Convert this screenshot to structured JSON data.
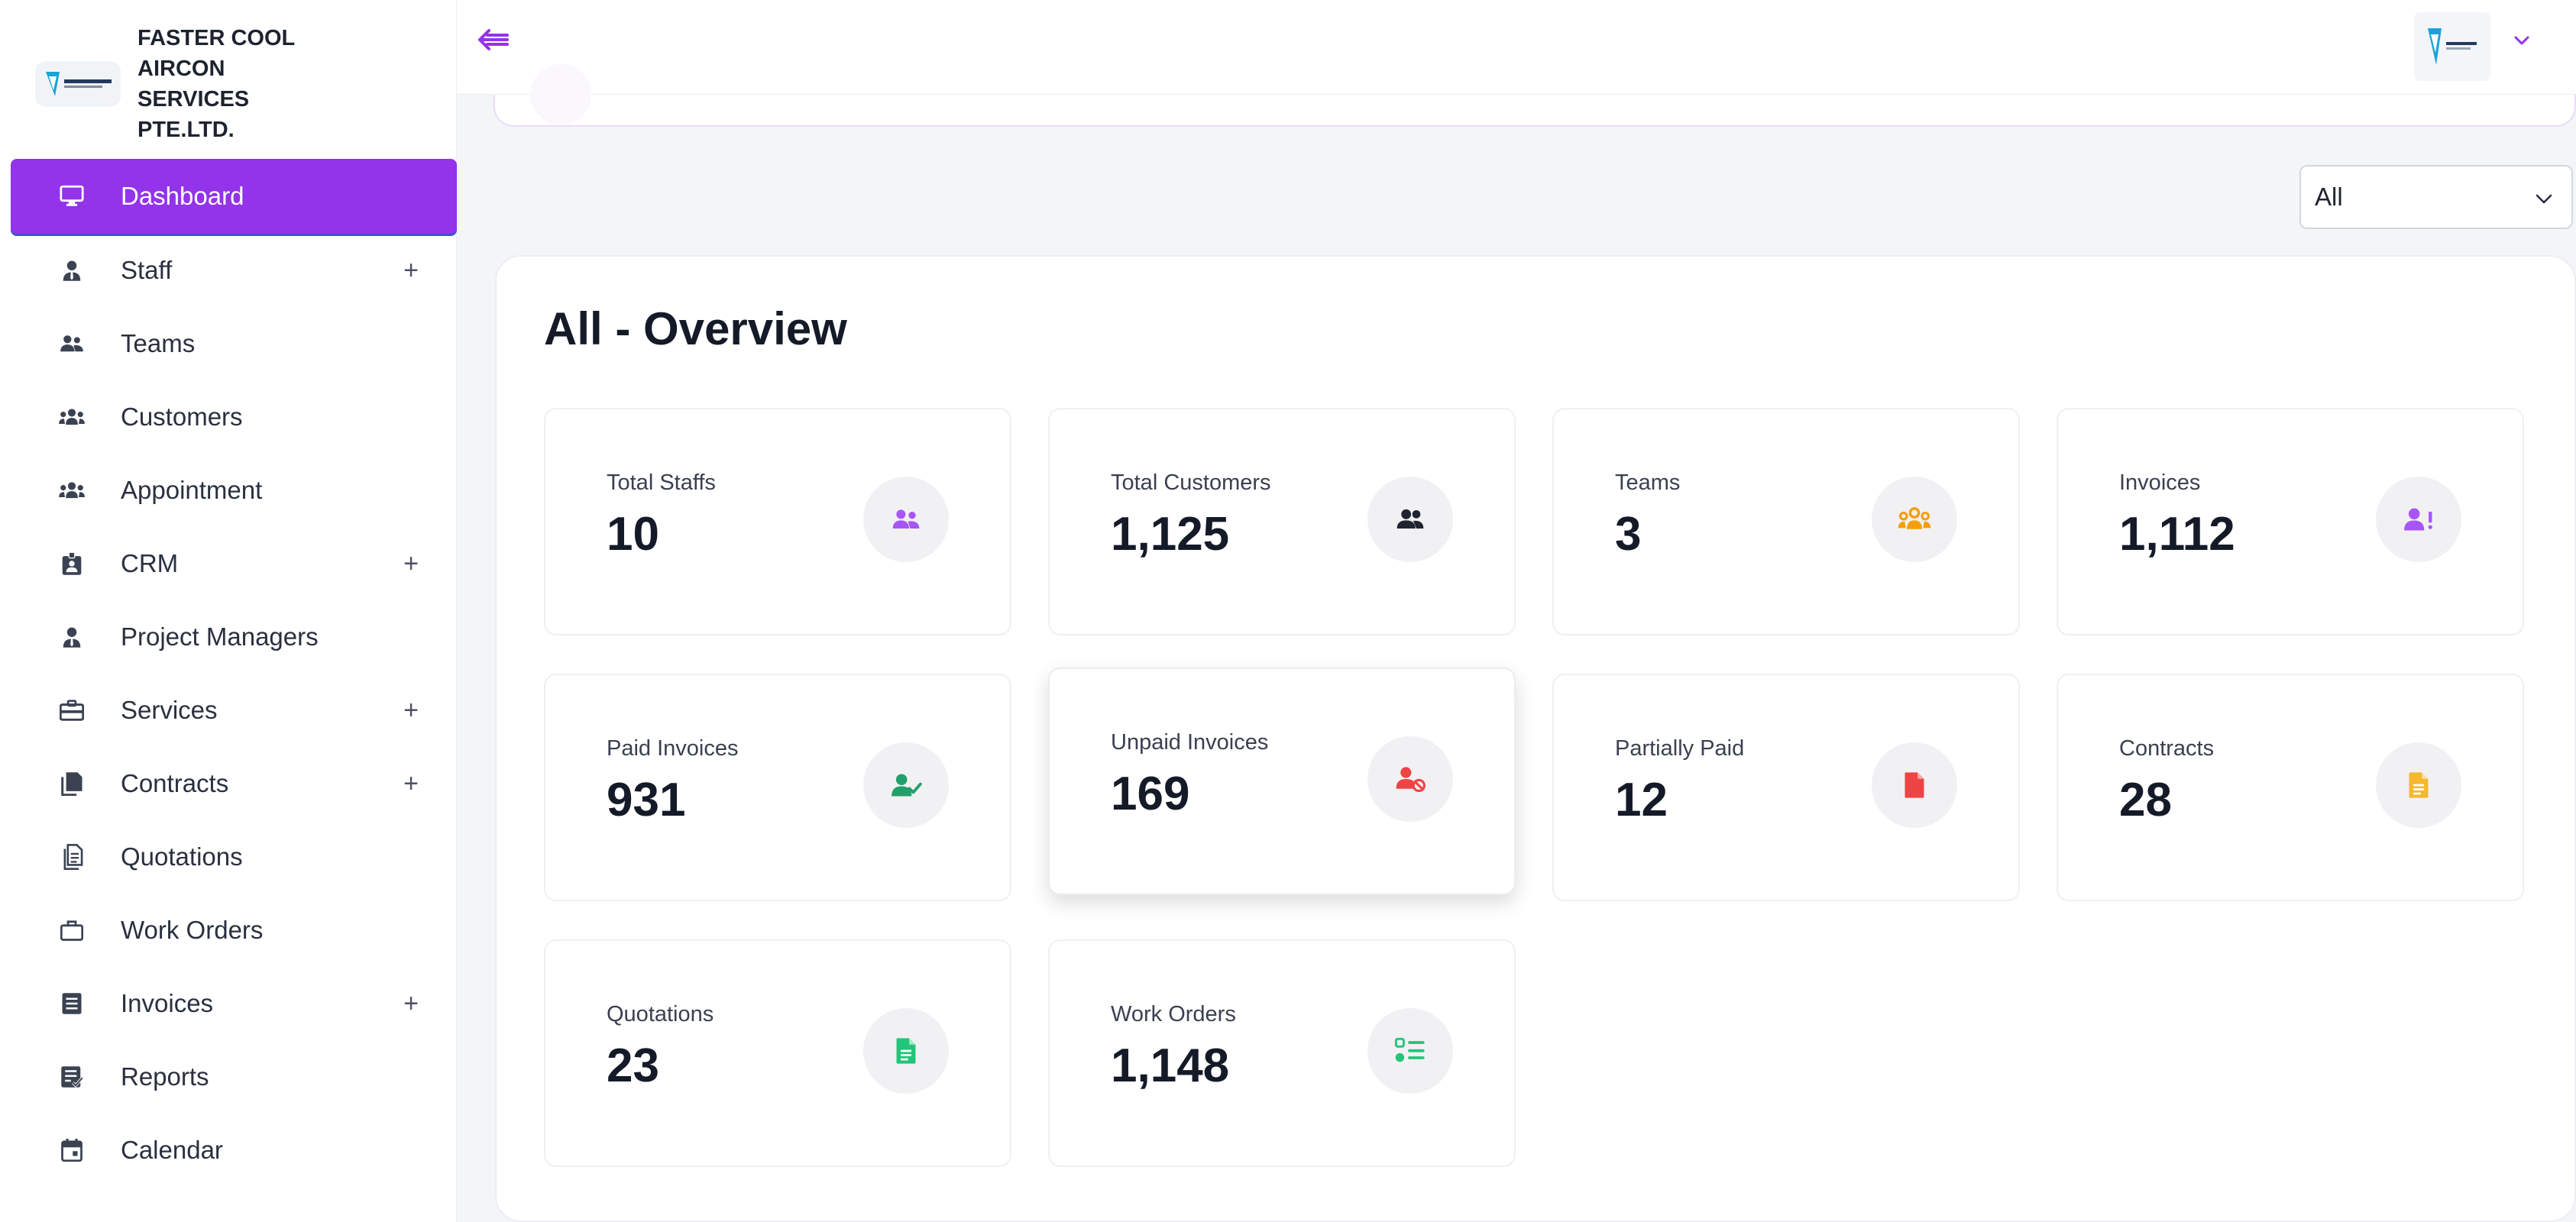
{
  "brand": {
    "name": "FASTER COOL AIRCON SERVICES PTE.LTD."
  },
  "sidebar": {
    "items": [
      {
        "label": "Dashboard",
        "icon": "monitor-icon",
        "active": true,
        "expandable": false
      },
      {
        "label": "Staff",
        "icon": "user-tie-icon",
        "expandable": true
      },
      {
        "label": "Teams",
        "icon": "users-icon",
        "expandable": false
      },
      {
        "label": "Customers",
        "icon": "user-group-icon",
        "expandable": false
      },
      {
        "label": "Appointment",
        "icon": "user-group-icon",
        "expandable": false
      },
      {
        "label": "CRM",
        "icon": "id-badge-icon",
        "expandable": true
      },
      {
        "label": "Project Managers",
        "icon": "user-tie-icon",
        "expandable": false
      },
      {
        "label": "Services",
        "icon": "toolbox-icon",
        "expandable": true
      },
      {
        "label": "Contracts",
        "icon": "files-icon",
        "expandable": true
      },
      {
        "label": "Quotations",
        "icon": "file-lines-icon",
        "expandable": false
      },
      {
        "label": "Work Orders",
        "icon": "briefcase-icon",
        "expandable": false
      },
      {
        "label": "Invoices",
        "icon": "list-box-icon",
        "expandable": true
      },
      {
        "label": "Reports",
        "icon": "report-icon",
        "expandable": false
      },
      {
        "label": "Calendar",
        "icon": "calendar-icon",
        "expandable": false
      }
    ]
  },
  "filter": {
    "selected": "All"
  },
  "overview": {
    "title": "All - Overview",
    "cards": [
      {
        "label": "Total Staffs",
        "value": "10",
        "icon": "users-icon",
        "color": "#a855f7"
      },
      {
        "label": "Total Customers",
        "value": "1,125",
        "icon": "user-group-icon",
        "color": "#1f2430"
      },
      {
        "label": "Teams",
        "value": "3",
        "icon": "people-group-icon",
        "color": "#f59e0b"
      },
      {
        "label": "Invoices",
        "value": "1,112",
        "icon": "user-exclamation-icon",
        "color": "#a855f7"
      },
      {
        "label": "Paid Invoices",
        "value": "931",
        "icon": "user-check-icon",
        "color": "#22a06b"
      },
      {
        "label": "Unpaid Invoices",
        "value": "169",
        "icon": "user-slash-icon",
        "color": "#ef4444"
      },
      {
        "label": "Partially Paid",
        "value": "12",
        "icon": "file-icon",
        "color": "#ef4444"
      },
      {
        "label": "Contracts",
        "value": "28",
        "icon": "file-text-icon",
        "color": "#f5b82e"
      },
      {
        "label": "Quotations",
        "value": "23",
        "icon": "file-text-icon",
        "color": "#22c57a"
      },
      {
        "label": "Work Orders",
        "value": "1,148",
        "icon": "list-check-icon",
        "color": "#22c57a"
      }
    ]
  }
}
